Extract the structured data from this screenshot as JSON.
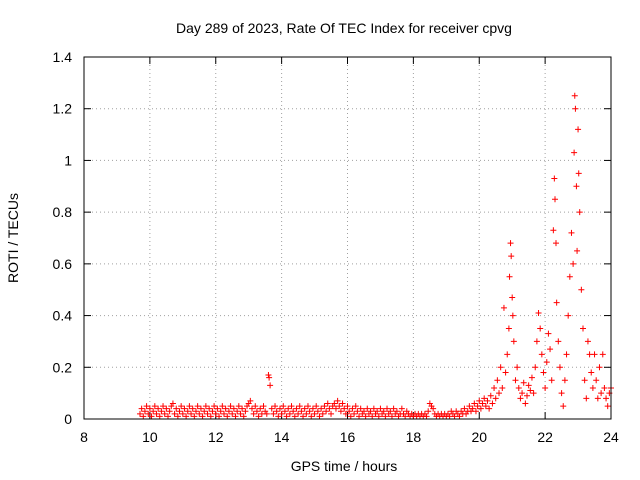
{
  "chart_data": {
    "type": "scatter",
    "title": "Day 289 of 2023, Rate Of TEC Index for receiver cpvg",
    "xlabel": "GPS time / hours",
    "ylabel": "ROTI / TECUs",
    "xlim": [
      8,
      24
    ],
    "ylim": [
      0,
      1.4
    ],
    "xticks": [
      8,
      10,
      12,
      14,
      16,
      18,
      20,
      22,
      24
    ],
    "yticks": [
      0,
      0.2,
      0.4,
      0.6,
      0.8,
      1,
      1.2,
      1.4
    ],
    "xtick_labels": [
      "8",
      "10",
      "12",
      "14",
      "16",
      "18",
      "20",
      "22",
      "24"
    ],
    "ytick_labels": [
      "0",
      "0.2",
      "0.4",
      "0.6",
      "0.8",
      "1",
      "1.2",
      "1.4"
    ],
    "grid": true,
    "marker": "+",
    "series": [
      {
        "name": "ROTI",
        "color": "#ff0000",
        "points": [
          [
            9.7,
            0.02
          ],
          [
            9.75,
            0.04
          ],
          [
            9.8,
            0.01
          ],
          [
            9.85,
            0.03
          ],
          [
            9.9,
            0.05
          ],
          [
            9.95,
            0.02
          ],
          [
            10.0,
            0.04
          ],
          [
            10.05,
            0.01
          ],
          [
            10.1,
            0.03
          ],
          [
            10.15,
            0.05
          ],
          [
            10.2,
            0.02
          ],
          [
            10.25,
            0.04
          ],
          [
            10.3,
            0.01
          ],
          [
            10.35,
            0.03
          ],
          [
            10.4,
            0.05
          ],
          [
            10.45,
            0.02
          ],
          [
            10.5,
            0.04
          ],
          [
            10.55,
            0.01
          ],
          [
            10.6,
            0.03
          ],
          [
            10.65,
            0.05
          ],
          [
            10.7,
            0.06
          ],
          [
            10.75,
            0.02
          ],
          [
            10.8,
            0.04
          ],
          [
            10.85,
            0.01
          ],
          [
            10.9,
            0.03
          ],
          [
            10.95,
            0.05
          ],
          [
            11.0,
            0.02
          ],
          [
            11.05,
            0.04
          ],
          [
            11.1,
            0.01
          ],
          [
            11.15,
            0.03
          ],
          [
            11.2,
            0.05
          ],
          [
            11.25,
            0.02
          ],
          [
            11.3,
            0.04
          ],
          [
            11.35,
            0.01
          ],
          [
            11.4,
            0.03
          ],
          [
            11.45,
            0.05
          ],
          [
            11.5,
            0.02
          ],
          [
            11.55,
            0.04
          ],
          [
            11.6,
            0.01
          ],
          [
            11.65,
            0.03
          ],
          [
            11.7,
            0.05
          ],
          [
            11.75,
            0.02
          ],
          [
            11.8,
            0.04
          ],
          [
            11.85,
            0.01
          ],
          [
            11.9,
            0.03
          ],
          [
            11.95,
            0.05
          ],
          [
            12.0,
            0.02
          ],
          [
            12.05,
            0.04
          ],
          [
            12.1,
            0.01
          ],
          [
            12.15,
            0.03
          ],
          [
            12.2,
            0.05
          ],
          [
            12.25,
            0.02
          ],
          [
            12.3,
            0.04
          ],
          [
            12.35,
            0.01
          ],
          [
            12.4,
            0.03
          ],
          [
            12.45,
            0.05
          ],
          [
            12.5,
            0.02
          ],
          [
            12.55,
            0.04
          ],
          [
            12.6,
            0.01
          ],
          [
            12.65,
            0.03
          ],
          [
            12.7,
            0.05
          ],
          [
            12.75,
            0.02
          ],
          [
            12.8,
            0.04
          ],
          [
            12.85,
            0.01
          ],
          [
            12.9,
            0.03
          ],
          [
            12.95,
            0.05
          ],
          [
            13.0,
            0.06
          ],
          [
            13.05,
            0.07
          ],
          [
            13.1,
            0.04
          ],
          [
            13.15,
            0.02
          ],
          [
            13.2,
            0.05
          ],
          [
            13.25,
            0.03
          ],
          [
            13.3,
            0.01
          ],
          [
            13.35,
            0.04
          ],
          [
            13.4,
            0.02
          ],
          [
            13.45,
            0.05
          ],
          [
            13.5,
            0.03
          ],
          [
            13.55,
            0.02
          ],
          [
            13.6,
            0.17
          ],
          [
            13.62,
            0.16
          ],
          [
            13.65,
            0.13
          ],
          [
            13.7,
            0.04
          ],
          [
            13.75,
            0.02
          ],
          [
            13.8,
            0.05
          ],
          [
            13.85,
            0.03
          ],
          [
            13.9,
            0.01
          ],
          [
            13.95,
            0.04
          ],
          [
            14.0,
            0.02
          ],
          [
            14.05,
            0.05
          ],
          [
            14.1,
            0.03
          ],
          [
            14.15,
            0.01
          ],
          [
            14.2,
            0.04
          ],
          [
            14.25,
            0.02
          ],
          [
            14.3,
            0.05
          ],
          [
            14.35,
            0.03
          ],
          [
            14.4,
            0.01
          ],
          [
            14.45,
            0.04
          ],
          [
            14.5,
            0.02
          ],
          [
            14.55,
            0.05
          ],
          [
            14.6,
            0.03
          ],
          [
            14.65,
            0.01
          ],
          [
            14.7,
            0.04
          ],
          [
            14.75,
            0.02
          ],
          [
            14.8,
            0.05
          ],
          [
            14.85,
            0.03
          ],
          [
            14.9,
            0.01
          ],
          [
            14.95,
            0.04
          ],
          [
            15.0,
            0.02
          ],
          [
            15.05,
            0.05
          ],
          [
            15.1,
            0.03
          ],
          [
            15.15,
            0.01
          ],
          [
            15.2,
            0.04
          ],
          [
            15.25,
            0.02
          ],
          [
            15.3,
            0.05
          ],
          [
            15.35,
            0.03
          ],
          [
            15.4,
            0.06
          ],
          [
            15.45,
            0.04
          ],
          [
            15.5,
            0.02
          ],
          [
            15.55,
            0.05
          ],
          [
            15.6,
            0.06
          ],
          [
            15.65,
            0.04
          ],
          [
            15.7,
            0.07
          ],
          [
            15.75,
            0.05
          ],
          [
            15.8,
            0.03
          ],
          [
            15.85,
            0.06
          ],
          [
            15.9,
            0.04
          ],
          [
            15.95,
            0.02
          ],
          [
            16.0,
            0.05
          ],
          [
            16.05,
            0.03
          ],
          [
            16.1,
            0.01
          ],
          [
            16.15,
            0.04
          ],
          [
            16.2,
            0.02
          ],
          [
            16.25,
            0.05
          ],
          [
            16.3,
            0.03
          ],
          [
            16.35,
            0.01
          ],
          [
            16.4,
            0.04
          ],
          [
            16.45,
            0.02
          ],
          [
            16.5,
            0.03
          ],
          [
            16.55,
            0.01
          ],
          [
            16.6,
            0.04
          ],
          [
            16.65,
            0.02
          ],
          [
            16.7,
            0.03
          ],
          [
            16.75,
            0.01
          ],
          [
            16.8,
            0.04
          ],
          [
            16.85,
            0.02
          ],
          [
            16.9,
            0.03
          ],
          [
            16.95,
            0.01
          ],
          [
            17.0,
            0.04
          ],
          [
            17.05,
            0.02
          ],
          [
            17.1,
            0.03
          ],
          [
            17.15,
            0.01
          ],
          [
            17.2,
            0.04
          ],
          [
            17.25,
            0.02
          ],
          [
            17.3,
            0.03
          ],
          [
            17.35,
            0.01
          ],
          [
            17.4,
            0.04
          ],
          [
            17.45,
            0.02
          ],
          [
            17.5,
            0.03
          ],
          [
            17.55,
            0.01
          ],
          [
            17.6,
            0.02
          ],
          [
            17.65,
            0.04
          ],
          [
            17.7,
            0.02
          ],
          [
            17.75,
            0.01
          ],
          [
            17.8,
            0.03
          ],
          [
            17.85,
            0.02
          ],
          [
            17.9,
            0.01
          ],
          [
            17.95,
            0.02
          ],
          [
            18.0,
            0.01
          ],
          [
            18.05,
            0.02
          ],
          [
            18.1,
            0.01
          ],
          [
            18.15,
            0.02
          ],
          [
            18.2,
            0.01
          ],
          [
            18.25,
            0.02
          ],
          [
            18.3,
            0.01
          ],
          [
            18.35,
            0.02
          ],
          [
            18.4,
            0.01
          ],
          [
            18.45,
            0.03
          ],
          [
            18.5,
            0.06
          ],
          [
            18.55,
            0.05
          ],
          [
            18.6,
            0.04
          ],
          [
            18.65,
            0.02
          ],
          [
            18.7,
            0.01
          ],
          [
            18.75,
            0.02
          ],
          [
            18.8,
            0.01
          ],
          [
            18.85,
            0.02
          ],
          [
            18.9,
            0.01
          ],
          [
            18.95,
            0.02
          ],
          [
            19.0,
            0.01
          ],
          [
            19.05,
            0.02
          ],
          [
            19.1,
            0.01
          ],
          [
            19.15,
            0.03
          ],
          [
            19.2,
            0.02
          ],
          [
            19.25,
            0.01
          ],
          [
            19.3,
            0.03
          ],
          [
            19.35,
            0.02
          ],
          [
            19.4,
            0.01
          ],
          [
            19.45,
            0.03
          ],
          [
            19.5,
            0.02
          ],
          [
            19.55,
            0.04
          ],
          [
            19.6,
            0.02
          ],
          [
            19.65,
            0.03
          ],
          [
            19.7,
            0.05
          ],
          [
            19.75,
            0.03
          ],
          [
            19.8,
            0.04
          ],
          [
            19.85,
            0.06
          ],
          [
            19.9,
            0.03
          ],
          [
            19.95,
            0.05
          ],
          [
            20.0,
            0.07
          ],
          [
            20.05,
            0.04
          ],
          [
            20.1,
            0.06
          ],
          [
            20.15,
            0.08
          ],
          [
            20.2,
            0.05
          ],
          [
            20.25,
            0.07
          ],
          [
            20.3,
            0.04
          ],
          [
            20.35,
            0.09
          ],
          [
            20.4,
            0.06
          ],
          [
            20.45,
            0.12
          ],
          [
            20.5,
            0.08
          ],
          [
            20.55,
            0.15
          ],
          [
            20.6,
            0.1
          ],
          [
            20.65,
            0.2
          ],
          [
            20.7,
            0.12
          ],
          [
            20.75,
            0.43
          ],
          [
            20.8,
            0.18
          ],
          [
            20.85,
            0.25
          ],
          [
            20.9,
            0.35
          ],
          [
            20.92,
            0.55
          ],
          [
            20.95,
            0.68
          ],
          [
            20.97,
            0.63
          ],
          [
            21.0,
            0.47
          ],
          [
            21.02,
            0.4
          ],
          [
            21.05,
            0.3
          ],
          [
            21.1,
            0.15
          ],
          [
            21.15,
            0.2
          ],
          [
            21.2,
            0.12
          ],
          [
            21.25,
            0.08
          ],
          [
            21.3,
            0.1
          ],
          [
            21.35,
            0.14
          ],
          [
            21.4,
            0.06
          ],
          [
            21.45,
            0.09
          ],
          [
            21.5,
            0.13
          ],
          [
            21.55,
            0.11
          ],
          [
            21.6,
            0.16
          ],
          [
            21.65,
            0.1
          ],
          [
            21.7,
            0.2
          ],
          [
            21.75,
            0.3
          ],
          [
            21.8,
            0.41
          ],
          [
            21.85,
            0.35
          ],
          [
            21.9,
            0.25
          ],
          [
            21.95,
            0.18
          ],
          [
            22.0,
            0.12
          ],
          [
            22.05,
            0.22
          ],
          [
            22.1,
            0.33
          ],
          [
            22.15,
            0.27
          ],
          [
            22.2,
            0.15
          ],
          [
            22.25,
            0.73
          ],
          [
            22.28,
            0.93
          ],
          [
            22.3,
            0.85
          ],
          [
            22.33,
            0.68
          ],
          [
            22.35,
            0.45
          ],
          [
            22.4,
            0.3
          ],
          [
            22.45,
            0.2
          ],
          [
            22.5,
            0.1
          ],
          [
            22.55,
            0.05
          ],
          [
            22.6,
            0.15
          ],
          [
            22.65,
            0.25
          ],
          [
            22.7,
            0.4
          ],
          [
            22.75,
            0.55
          ],
          [
            22.8,
            0.72
          ],
          [
            22.85,
            0.6
          ],
          [
            22.88,
            1.03
          ],
          [
            22.9,
            1.25
          ],
          [
            22.92,
            1.2
          ],
          [
            22.95,
            0.9
          ],
          [
            22.97,
            0.65
          ],
          [
            23.0,
            1.12
          ],
          [
            23.02,
            0.95
          ],
          [
            23.05,
            0.8
          ],
          [
            23.1,
            0.5
          ],
          [
            23.15,
            0.35
          ],
          [
            23.2,
            0.15
          ],
          [
            23.25,
            0.08
          ],
          [
            23.3,
            0.3
          ],
          [
            23.35,
            0.25
          ],
          [
            23.4,
            0.18
          ],
          [
            23.45,
            0.12
          ],
          [
            23.5,
            0.25
          ],
          [
            23.55,
            0.15
          ],
          [
            23.6,
            0.08
          ],
          [
            23.65,
            0.2
          ],
          [
            23.7,
            0.1
          ],
          [
            23.75,
            0.25
          ],
          [
            23.8,
            0.12
          ],
          [
            23.85,
            0.08
          ],
          [
            23.9,
            0.05
          ],
          [
            23.95,
            0.1
          ],
          [
            24.0,
            0.12
          ]
        ]
      }
    ]
  }
}
